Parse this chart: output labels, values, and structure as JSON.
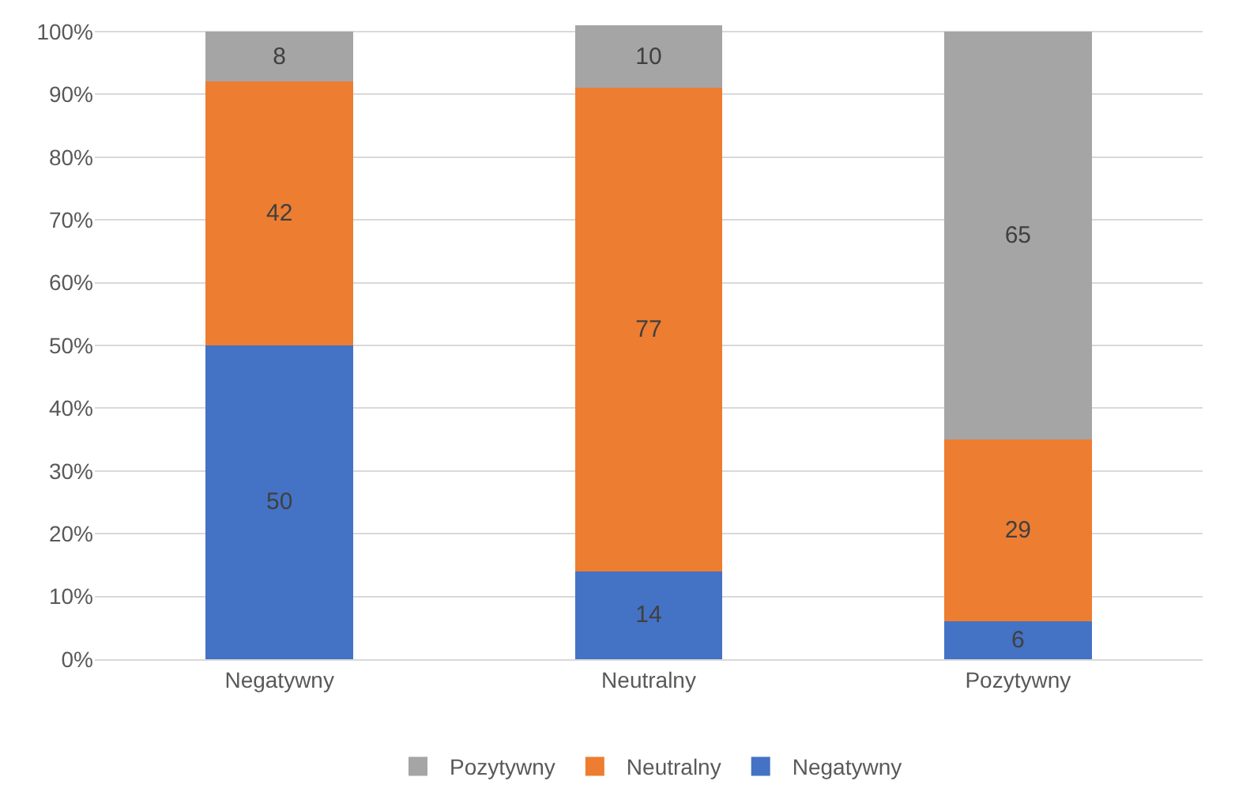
{
  "chart_data": {
    "type": "bar",
    "stacked": true,
    "categories": [
      "Negatywny",
      "Neutralny",
      "Pozytywny"
    ],
    "series": [
      {
        "name": "Negatywny",
        "color": "#4472c4",
        "values": [
          50,
          14,
          6
        ]
      },
      {
        "name": "Neutralny",
        "color": "#ed7d31",
        "values": [
          42,
          77,
          29
        ]
      },
      {
        "name": "Pozytywny",
        "color": "#a5a5a5",
        "values": [
          8,
          10,
          65
        ]
      }
    ],
    "ylim": [
      0,
      101
    ],
    "yticks": [
      {
        "value": 0,
        "label": "0%"
      },
      {
        "value": 10,
        "label": "10%"
      },
      {
        "value": 20,
        "label": "20%"
      },
      {
        "value": 30,
        "label": "30%"
      },
      {
        "value": 40,
        "label": "40%"
      },
      {
        "value": 50,
        "label": "50%"
      },
      {
        "value": 60,
        "label": "60%"
      },
      {
        "value": 70,
        "label": "70%"
      },
      {
        "value": 80,
        "label": "80%"
      },
      {
        "value": 90,
        "label": "90%"
      },
      {
        "value": 100,
        "label": "100%"
      }
    ],
    "grid": "y",
    "legend": "bottom",
    "data_labels": true
  }
}
